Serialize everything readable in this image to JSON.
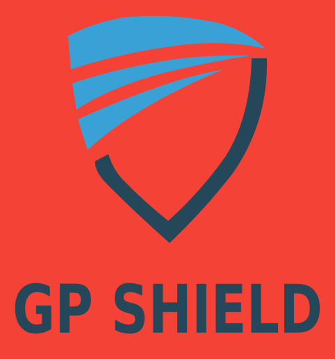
{
  "logo": {
    "text": "GP SHIELD",
    "colors": {
      "background": "#F44336",
      "shield_dark": "#25475A",
      "stripe_blue": "#3AA1D6"
    }
  }
}
